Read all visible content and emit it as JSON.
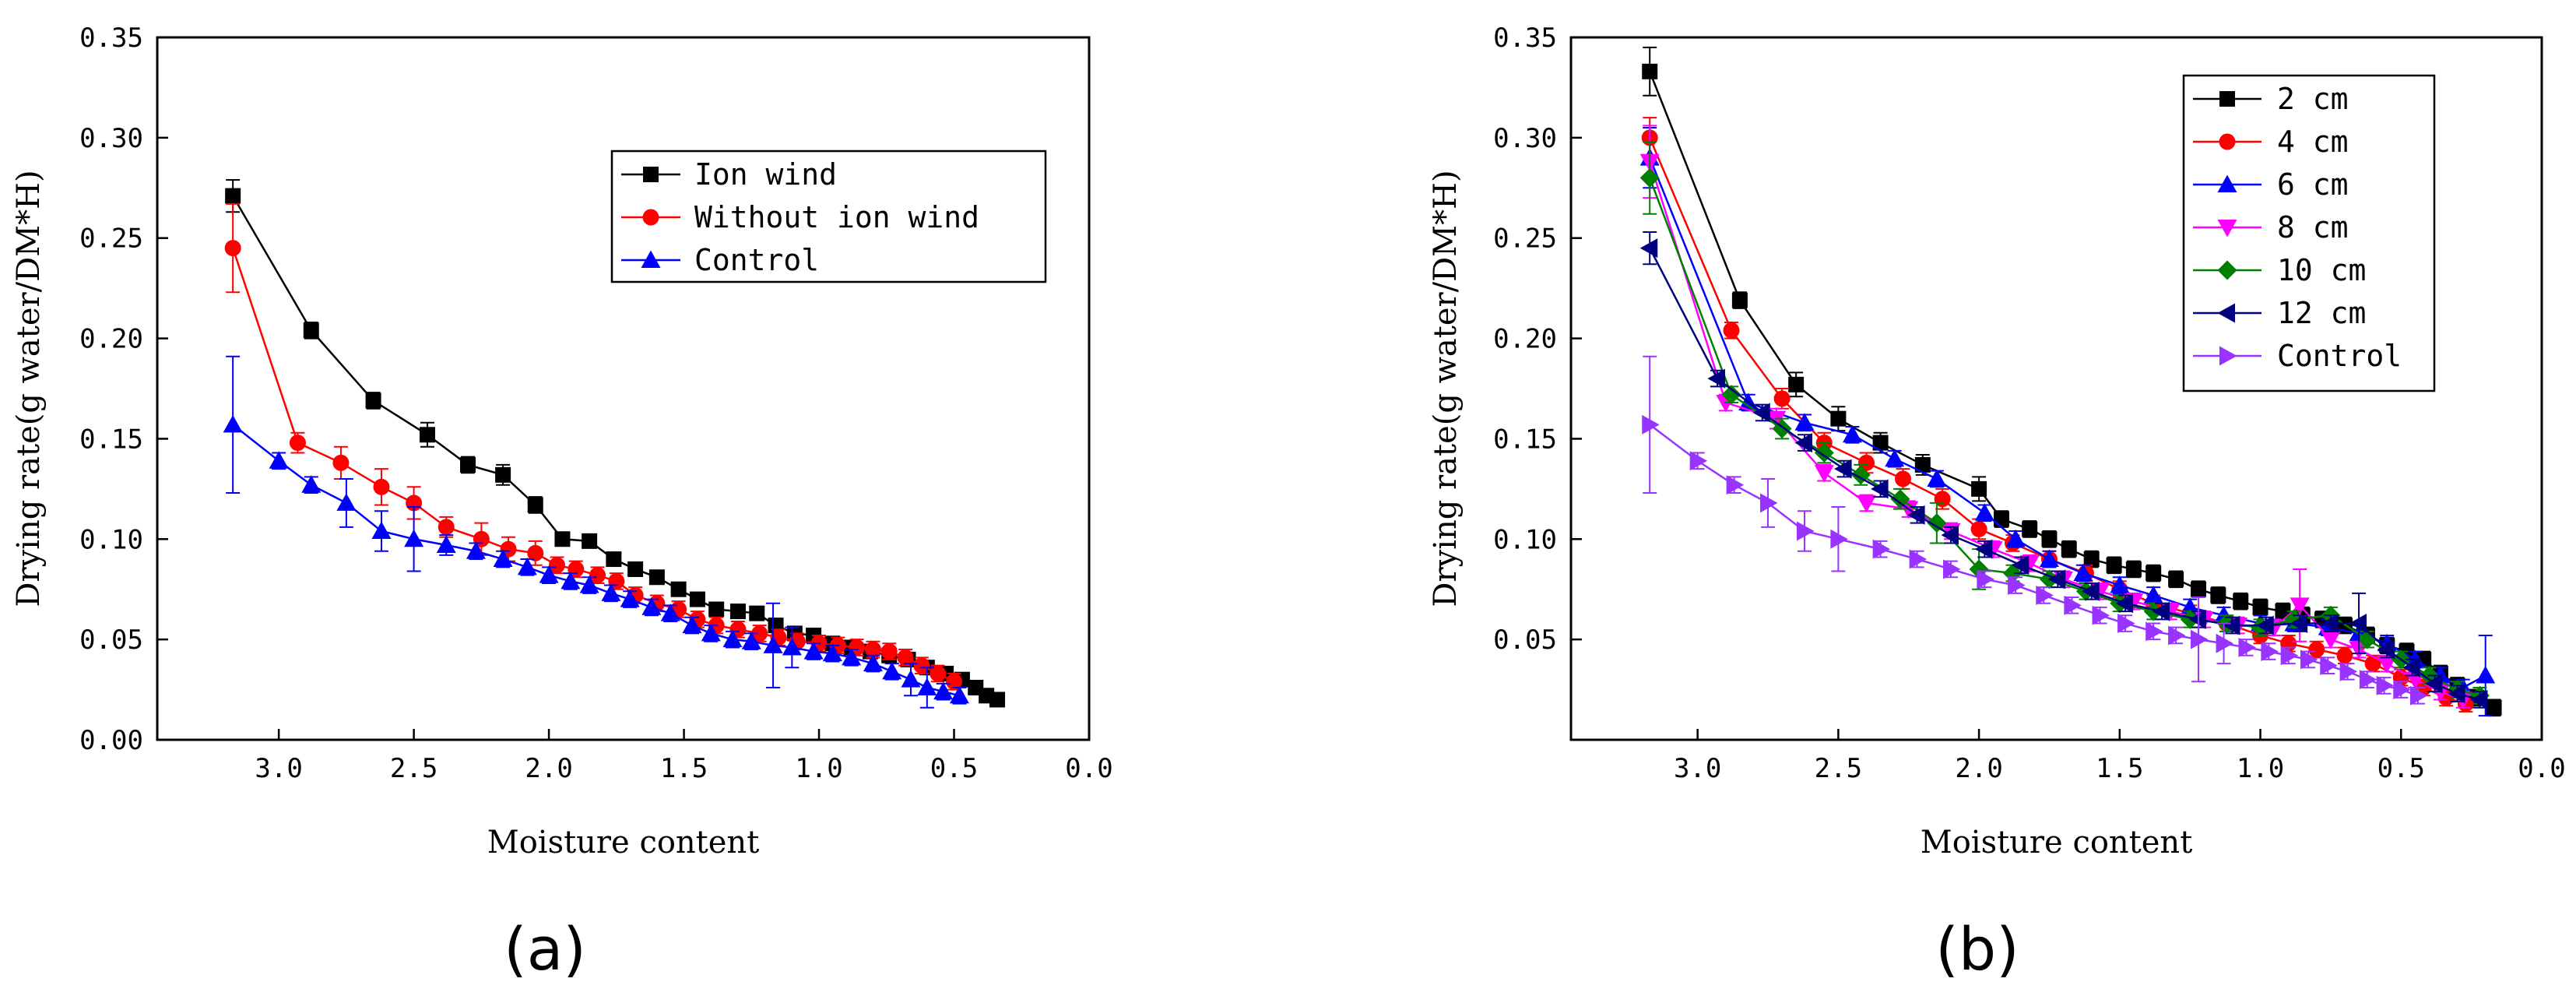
{
  "chart_data": [
    {
      "type": "line",
      "panel_label": "(a)",
      "xlabel": "Moisture content",
      "ylabel": "Drying rate(g water/DM*H)",
      "xlim": [
        3.45,
        0.0
      ],
      "ylim": [
        0.0,
        0.35
      ],
      "xticks": [
        "3.0",
        "2.5",
        "2.0",
        "1.5",
        "1.0",
        "0.5",
        "0.0"
      ],
      "xtick_values": [
        3.0,
        2.5,
        2.0,
        1.5,
        1.0,
        0.5,
        0.0
      ],
      "yticks": [
        "0.00",
        "0.05",
        "0.10",
        "0.15",
        "0.20",
        "0.25",
        "0.30",
        "0.35"
      ],
      "ytick_values": [
        0.0,
        0.05,
        0.1,
        0.15,
        0.2,
        0.25,
        0.3,
        0.35
      ],
      "legend_position": "top-right",
      "series": [
        {
          "name": "Ion wind",
          "color": "#000000",
          "marker": "square",
          "x": [
            3.17,
            2.88,
            2.65,
            2.45,
            2.3,
            2.17,
            2.05,
            1.95,
            1.85,
            1.76,
            1.68,
            1.6,
            1.52,
            1.45,
            1.38,
            1.3,
            1.23,
            1.16,
            1.09,
            1.02,
            0.95,
            0.88,
            0.81,
            0.74,
            0.67,
            0.6,
            0.53,
            0.47,
            0.42,
            0.38,
            0.34
          ],
          "y": [
            0.271,
            0.204,
            0.169,
            0.152,
            0.137,
            0.132,
            0.117,
            0.1,
            0.099,
            0.09,
            0.085,
            0.081,
            0.075,
            0.07,
            0.065,
            0.064,
            0.063,
            0.057,
            0.053,
            0.052,
            0.048,
            0.046,
            0.044,
            0.042,
            0.04,
            0.036,
            0.033,
            0.03,
            0.026,
            0.022,
            0.02
          ],
          "err": [
            0.008,
            0.004,
            0.004,
            0.006,
            0.004,
            0.005,
            0.004,
            0.003,
            0.003,
            0.003,
            0.003,
            0.003,
            0.003,
            0.003,
            0.003,
            0.003,
            0.003,
            0.003,
            0.003,
            0.003,
            0.003,
            0.003,
            0.003,
            0.003,
            0.003,
            0.003,
            0.003,
            0.003,
            0.003,
            0.003,
            0.003
          ]
        },
        {
          "name": "Without ion wind",
          "color": "#ff0000",
          "marker": "circle",
          "x": [
            3.17,
            2.93,
            2.77,
            2.62,
            2.5,
            2.38,
            2.25,
            2.15,
            2.05,
            1.97,
            1.9,
            1.82,
            1.75,
            1.68,
            1.6,
            1.52,
            1.45,
            1.38,
            1.3,
            1.22,
            1.15,
            1.08,
            1.0,
            0.93,
            0.86,
            0.8,
            0.74,
            0.68,
            0.62,
            0.56,
            0.5
          ],
          "y": [
            0.245,
            0.148,
            0.138,
            0.126,
            0.118,
            0.106,
            0.1,
            0.095,
            0.093,
            0.087,
            0.085,
            0.082,
            0.079,
            0.072,
            0.068,
            0.065,
            0.06,
            0.057,
            0.055,
            0.053,
            0.051,
            0.049,
            0.048,
            0.047,
            0.046,
            0.045,
            0.044,
            0.041,
            0.037,
            0.033,
            0.029
          ],
          "err": [
            0.022,
            0.005,
            0.008,
            0.009,
            0.008,
            0.005,
            0.008,
            0.006,
            0.006,
            0.004,
            0.004,
            0.004,
            0.004,
            0.004,
            0.004,
            0.004,
            0.004,
            0.004,
            0.004,
            0.004,
            0.004,
            0.004,
            0.004,
            0.004,
            0.004,
            0.004,
            0.004,
            0.004,
            0.004,
            0.004,
            0.004
          ]
        },
        {
          "name": "Control",
          "color": "#0000ff",
          "marker": "triangle-up",
          "x": [
            3.17,
            3.0,
            2.88,
            2.75,
            2.62,
            2.5,
            2.38,
            2.27,
            2.17,
            2.08,
            2.0,
            1.92,
            1.85,
            1.77,
            1.7,
            1.62,
            1.55,
            1.47,
            1.4,
            1.32,
            1.25,
            1.17,
            1.1,
            1.02,
            0.95,
            0.88,
            0.8,
            0.73,
            0.66,
            0.6,
            0.54,
            0.48
          ],
          "y": [
            0.157,
            0.139,
            0.127,
            0.118,
            0.104,
            0.1,
            0.097,
            0.094,
            0.09,
            0.086,
            0.082,
            0.079,
            0.077,
            0.073,
            0.07,
            0.066,
            0.063,
            0.057,
            0.053,
            0.05,
            0.049,
            0.047,
            0.046,
            0.044,
            0.043,
            0.041,
            0.038,
            0.034,
            0.03,
            0.026,
            0.024,
            0.022
          ],
          "err": [
            0.034,
            0.004,
            0.004,
            0.012,
            0.01,
            0.016,
            0.005,
            0.004,
            0.004,
            0.004,
            0.004,
            0.004,
            0.004,
            0.004,
            0.004,
            0.004,
            0.004,
            0.004,
            0.004,
            0.004,
            0.004,
            0.021,
            0.01,
            0.004,
            0.004,
            0.004,
            0.004,
            0.004,
            0.008,
            0.01,
            0.004,
            0.004
          ]
        }
      ]
    },
    {
      "type": "line",
      "panel_label": "(b)",
      "xlabel": "Moisture content",
      "ylabel": "Drying rate(g water/DM*H)",
      "xlim": [
        3.45,
        0.0
      ],
      "ylim": [
        0.0,
        0.35
      ],
      "xticks": [
        "3.0",
        "2.5",
        "2.0",
        "1.5",
        "1.0",
        "0.5",
        "0.0"
      ],
      "xtick_values": [
        3.0,
        2.5,
        2.0,
        1.5,
        1.0,
        0.5,
        0.0
      ],
      "yticks": [
        "0.05",
        "0.10",
        "0.15",
        "0.20",
        "0.25",
        "0.30",
        "0.35"
      ],
      "ytick_values": [
        0.05,
        0.1,
        0.15,
        0.2,
        0.25,
        0.3,
        0.35
      ],
      "legend_position": "top-right",
      "series": [
        {
          "name": "2 cm",
          "color": "#000000",
          "marker": "square",
          "x": [
            3.17,
            2.85,
            2.65,
            2.5,
            2.35,
            2.2,
            2.0,
            1.92,
            1.82,
            1.75,
            1.68,
            1.6,
            1.52,
            1.45,
            1.38,
            1.3,
            1.22,
            1.15,
            1.07,
            1.0,
            0.92,
            0.85,
            0.78,
            0.7,
            0.62,
            0.55,
            0.48,
            0.42,
            0.36,
            0.3,
            0.24,
            0.17
          ],
          "y": [
            0.333,
            0.219,
            0.177,
            0.16,
            0.148,
            0.137,
            0.125,
            0.11,
            0.105,
            0.1,
            0.095,
            0.09,
            0.087,
            0.085,
            0.083,
            0.08,
            0.075,
            0.072,
            0.069,
            0.066,
            0.064,
            0.062,
            0.06,
            0.057,
            0.052,
            0.047,
            0.044,
            0.04,
            0.033,
            0.027,
            0.021,
            0.016
          ],
          "err": [
            0.012,
            0.004,
            0.006,
            0.006,
            0.005,
            0.005,
            0.006,
            0.004,
            0.004,
            0.004,
            0.004,
            0.004,
            0.004,
            0.004,
            0.004,
            0.004,
            0.004,
            0.004,
            0.004,
            0.004,
            0.004,
            0.004,
            0.004,
            0.004,
            0.004,
            0.004,
            0.004,
            0.004,
            0.004,
            0.004,
            0.004,
            0.004
          ]
        },
        {
          "name": "4 cm",
          "color": "#ff0000",
          "marker": "circle",
          "x": [
            3.17,
            2.88,
            2.7,
            2.55,
            2.4,
            2.27,
            2.13,
            2.0,
            1.88,
            1.75,
            1.62,
            1.5,
            1.38,
            1.25,
            1.12,
            1.0,
            0.9,
            0.8,
            0.7,
            0.6,
            0.5,
            0.42,
            0.34,
            0.27
          ],
          "y": [
            0.3,
            0.204,
            0.17,
            0.148,
            0.138,
            0.13,
            0.12,
            0.105,
            0.098,
            0.09,
            0.083,
            0.075,
            0.068,
            0.063,
            0.058,
            0.052,
            0.048,
            0.045,
            0.042,
            0.038,
            0.031,
            0.026,
            0.021,
            0.018
          ],
          "err": [
            0.01,
            0.004,
            0.005,
            0.005,
            0.005,
            0.005,
            0.005,
            0.005,
            0.004,
            0.004,
            0.004,
            0.004,
            0.004,
            0.004,
            0.004,
            0.004,
            0.004,
            0.004,
            0.004,
            0.004,
            0.004,
            0.004,
            0.004,
            0.004
          ]
        },
        {
          "name": "6 cm",
          "color": "#0000ff",
          "marker": "triangle-up",
          "x": [
            3.17,
            2.82,
            2.62,
            2.45,
            2.3,
            2.15,
            1.98,
            1.87,
            1.75,
            1.63,
            1.5,
            1.38,
            1.25,
            1.13,
            1.0,
            0.88,
            0.76,
            0.65,
            0.55,
            0.45,
            0.36,
            0.28,
            0.2
          ],
          "y": [
            0.29,
            0.168,
            0.158,
            0.152,
            0.14,
            0.13,
            0.113,
            0.1,
            0.09,
            0.083,
            0.077,
            0.072,
            0.066,
            0.062,
            0.058,
            0.058,
            0.056,
            0.053,
            0.048,
            0.04,
            0.032,
            0.026,
            0.032
          ],
          "err": [
            0.015,
            0.004,
            0.004,
            0.004,
            0.004,
            0.004,
            0.004,
            0.004,
            0.004,
            0.004,
            0.004,
            0.004,
            0.004,
            0.004,
            0.004,
            0.004,
            0.004,
            0.004,
            0.004,
            0.004,
            0.004,
            0.004,
            0.02
          ]
        },
        {
          "name": "8 cm",
          "color": "#ff00ff",
          "marker": "triangle-down",
          "x": [
            3.17,
            2.9,
            2.72,
            2.55,
            2.4,
            2.25,
            2.1,
            1.95,
            1.82,
            1.7,
            1.57,
            1.45,
            1.32,
            1.2,
            1.08,
            0.95,
            0.86,
            0.75,
            0.65,
            0.55,
            0.45,
            0.36,
            0.28
          ],
          "y": [
            0.288,
            0.168,
            0.16,
            0.133,
            0.118,
            0.115,
            0.104,
            0.095,
            0.088,
            0.08,
            0.074,
            0.069,
            0.064,
            0.06,
            0.057,
            0.056,
            0.067,
            0.05,
            0.045,
            0.038,
            0.03,
            0.024,
            0.02
          ],
          "err": [
            0.018,
            0.004,
            0.005,
            0.004,
            0.004,
            0.004,
            0.004,
            0.004,
            0.004,
            0.004,
            0.004,
            0.004,
            0.004,
            0.004,
            0.004,
            0.004,
            0.018,
            0.004,
            0.004,
            0.004,
            0.004,
            0.004,
            0.004
          ]
        },
        {
          "name": "10 cm",
          "color": "#008000",
          "marker": "diamond",
          "x": [
            3.17,
            2.88,
            2.7,
            2.55,
            2.42,
            2.28,
            2.15,
            2.0,
            1.88,
            1.75,
            1.62,
            1.5,
            1.38,
            1.25,
            1.12,
            1.0,
            0.88,
            0.75,
            0.62,
            0.5,
            0.4,
            0.3,
            0.22
          ],
          "y": [
            0.28,
            0.172,
            0.155,
            0.143,
            0.132,
            0.12,
            0.108,
            0.085,
            0.083,
            0.08,
            0.074,
            0.068,
            0.064,
            0.06,
            0.058,
            0.056,
            0.06,
            0.062,
            0.05,
            0.04,
            0.032,
            0.025,
            0.022
          ],
          "err": [
            0.018,
            0.004,
            0.005,
            0.005,
            0.005,
            0.005,
            0.01,
            0.01,
            0.004,
            0.004,
            0.004,
            0.004,
            0.004,
            0.004,
            0.004,
            0.004,
            0.004,
            0.004,
            0.004,
            0.004,
            0.004,
            0.004,
            0.004
          ]
        },
        {
          "name": "12 cm",
          "color": "#000080",
          "marker": "triangle-left",
          "x": [
            3.17,
            2.93,
            2.77,
            2.62,
            2.48,
            2.35,
            2.22,
            2.1,
            1.98,
            1.85,
            1.72,
            1.6,
            1.48,
            1.35,
            1.22,
            1.1,
            0.98,
            0.86,
            0.75,
            0.65,
            0.55,
            0.46,
            0.38,
            0.3,
            0.22
          ],
          "y": [
            0.245,
            0.18,
            0.163,
            0.148,
            0.135,
            0.125,
            0.112,
            0.102,
            0.095,
            0.087,
            0.08,
            0.074,
            0.068,
            0.064,
            0.06,
            0.057,
            0.057,
            0.058,
            0.058,
            0.058,
            0.045,
            0.036,
            0.028,
            0.023,
            0.02
          ],
          "err": [
            0.008,
            0.004,
            0.004,
            0.004,
            0.004,
            0.004,
            0.004,
            0.004,
            0.004,
            0.004,
            0.004,
            0.004,
            0.004,
            0.004,
            0.004,
            0.004,
            0.004,
            0.004,
            0.004,
            0.015,
            0.004,
            0.004,
            0.004,
            0.004,
            0.004
          ]
        },
        {
          "name": "Control",
          "color": "#9933ff",
          "marker": "triangle-right",
          "x": [
            3.17,
            3.0,
            2.87,
            2.75,
            2.62,
            2.5,
            2.35,
            2.22,
            2.1,
            1.98,
            1.87,
            1.77,
            1.67,
            1.57,
            1.48,
            1.38,
            1.3,
            1.22,
            1.13,
            1.05,
            0.97,
            0.9,
            0.83,
            0.76,
            0.69,
            0.62,
            0.56,
            0.5,
            0.44
          ],
          "y": [
            0.157,
            0.139,
            0.127,
            0.118,
            0.104,
            0.1,
            0.095,
            0.09,
            0.085,
            0.08,
            0.077,
            0.072,
            0.067,
            0.062,
            0.058,
            0.054,
            0.052,
            0.05,
            0.048,
            0.046,
            0.044,
            0.042,
            0.04,
            0.037,
            0.034,
            0.03,
            0.027,
            0.025,
            0.022
          ],
          "err": [
            0.034,
            0.004,
            0.004,
            0.012,
            0.01,
            0.016,
            0.004,
            0.004,
            0.004,
            0.004,
            0.004,
            0.004,
            0.004,
            0.004,
            0.004,
            0.004,
            0.004,
            0.021,
            0.01,
            0.004,
            0.004,
            0.004,
            0.004,
            0.004,
            0.004,
            0.004,
            0.004,
            0.004,
            0.004
          ]
        }
      ]
    }
  ]
}
